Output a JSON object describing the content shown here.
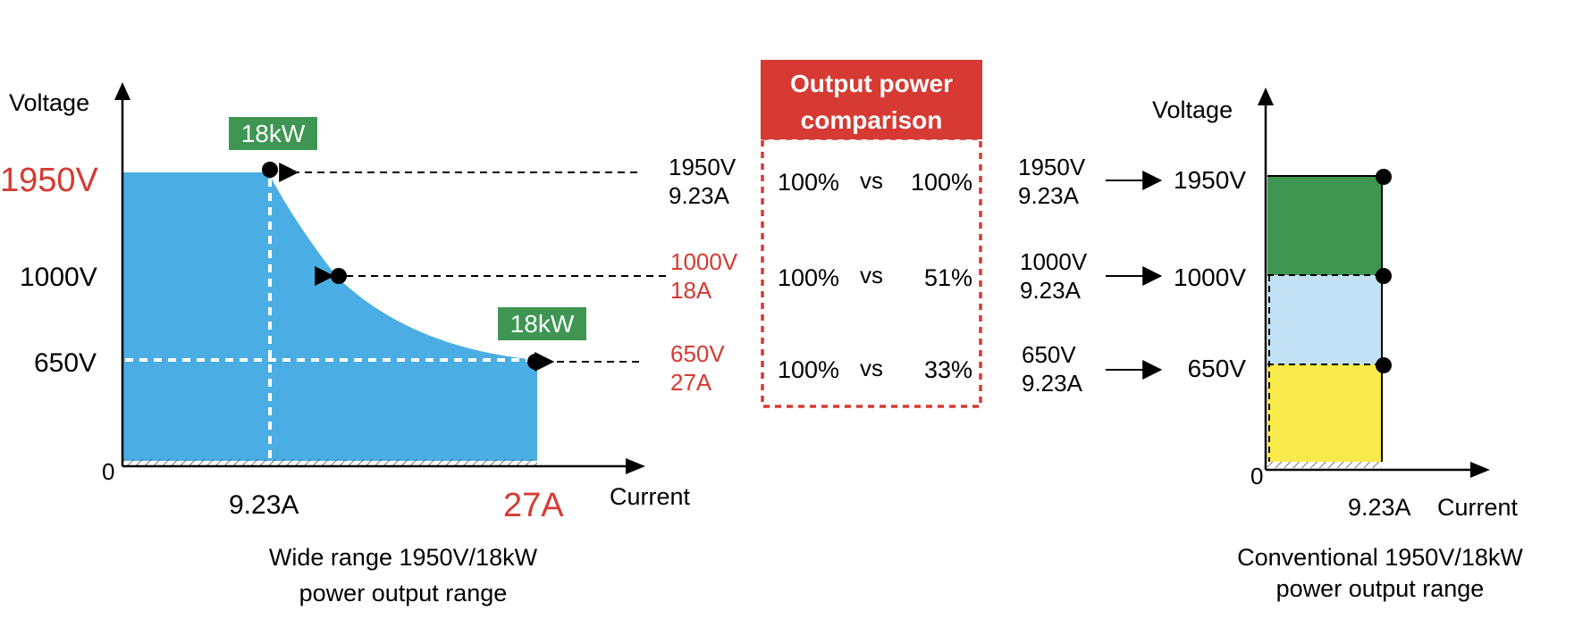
{
  "colors": {
    "fill_blue": "#4aaee4",
    "green": "#3e9652",
    "light_blue": "#c3e1f4",
    "yellow": "#f8ea4a",
    "red": "#d63a32",
    "black": "#000000",
    "white": "#ffffff"
  },
  "wide_chart": {
    "y_axis_label": "Voltage",
    "x_axis_label": "Current",
    "origin_label": "0",
    "y_ticks": [
      {
        "label": "1950V",
        "highlight": true
      },
      {
        "label": "1000V",
        "highlight": false
      },
      {
        "label": "650V",
        "highlight": false
      }
    ],
    "x_ticks": [
      {
        "label": "9.23A",
        "highlight": false
      },
      {
        "label": "27A",
        "highlight": true
      }
    ],
    "badges": [
      "18kW",
      "18kW"
    ],
    "caption_line1": "Wide range 1950V/18kW",
    "caption_line2": "power output range",
    "points": [
      {
        "label_v": "1950V",
        "label_a": "9.23A",
        "highlight": false
      },
      {
        "label_v": "1000V",
        "label_a": "18A",
        "highlight": true
      },
      {
        "label_v": "650V",
        "label_a": "27A",
        "highlight": true
      }
    ]
  },
  "comparison": {
    "title_line1": "Output power",
    "title_line2": "comparison",
    "rows": [
      {
        "left": "100%",
        "vs": "vs",
        "right": "100%"
      },
      {
        "left": "100%",
        "vs": "vs",
        "right": "51%"
      },
      {
        "left": "100%",
        "vs": "vs",
        "right": "33%"
      }
    ]
  },
  "conventional_chart": {
    "y_axis_label": "Voltage",
    "x_axis_label": "Current",
    "origin_label": "0",
    "x_tick": "9.23A",
    "points": [
      {
        "label_v": "1950V",
        "label_a": "9.23A",
        "level": "1950V"
      },
      {
        "label_v": "1000V",
        "label_a": "9.23A",
        "level": "1000V"
      },
      {
        "label_v": "650V",
        "label_a": "9.23A",
        "level": "650V"
      }
    ],
    "caption_line1": "Conventional 1950V/18kW",
    "caption_line2": "power output range"
  }
}
